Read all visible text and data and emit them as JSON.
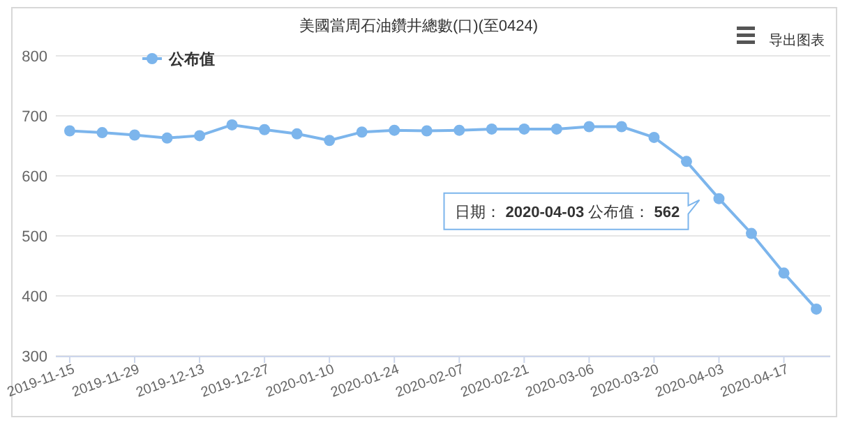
{
  "chart_data": {
    "type": "line",
    "title": "美國當周石油鑽井總數(口)(至0424)",
    "x": [
      "2019-11-15",
      "2019-11-22",
      "2019-11-29",
      "2019-12-06",
      "2019-12-13",
      "2019-12-20",
      "2019-12-27",
      "2020-01-03",
      "2020-01-10",
      "2020-01-17",
      "2020-01-24",
      "2020-01-31",
      "2020-02-07",
      "2020-02-14",
      "2020-02-21",
      "2020-02-28",
      "2020-03-06",
      "2020-03-13",
      "2020-03-20",
      "2020-03-27",
      "2020-04-03",
      "2020-04-10",
      "2020-04-17",
      "2020-04-24"
    ],
    "series": [
      {
        "name": "公布值",
        "color": "#7cb5ec",
        "values": [
          675,
          672,
          668,
          663,
          667,
          685,
          677,
          670,
          659,
          673,
          676,
          675,
          676,
          678,
          678,
          678,
          682,
          682,
          664,
          624,
          562,
          504,
          438,
          378
        ]
      }
    ],
    "xlim": [
      "2019-11-12",
      "2020-04-27"
    ],
    "xticks": [
      "2019-11-15",
      "2019-11-29",
      "2019-12-13",
      "2019-12-27",
      "2020-01-10",
      "2020-01-24",
      "2020-02-07",
      "2020-02-21",
      "2020-03-06",
      "2020-03-20",
      "2020-04-03",
      "2020-04-17"
    ],
    "ylim": [
      300,
      800
    ],
    "yticks": [
      300,
      400,
      500,
      600,
      700,
      800
    ],
    "grid": "y",
    "legend": "top left",
    "marker": "circle",
    "line_style": "solid",
    "annotations": [
      {
        "text": "日期： **2020-04-03** 公布值： **562**",
        "x": "2020-04-03",
        "y": 562
      },
      "导出图表"
    ]
  }
}
